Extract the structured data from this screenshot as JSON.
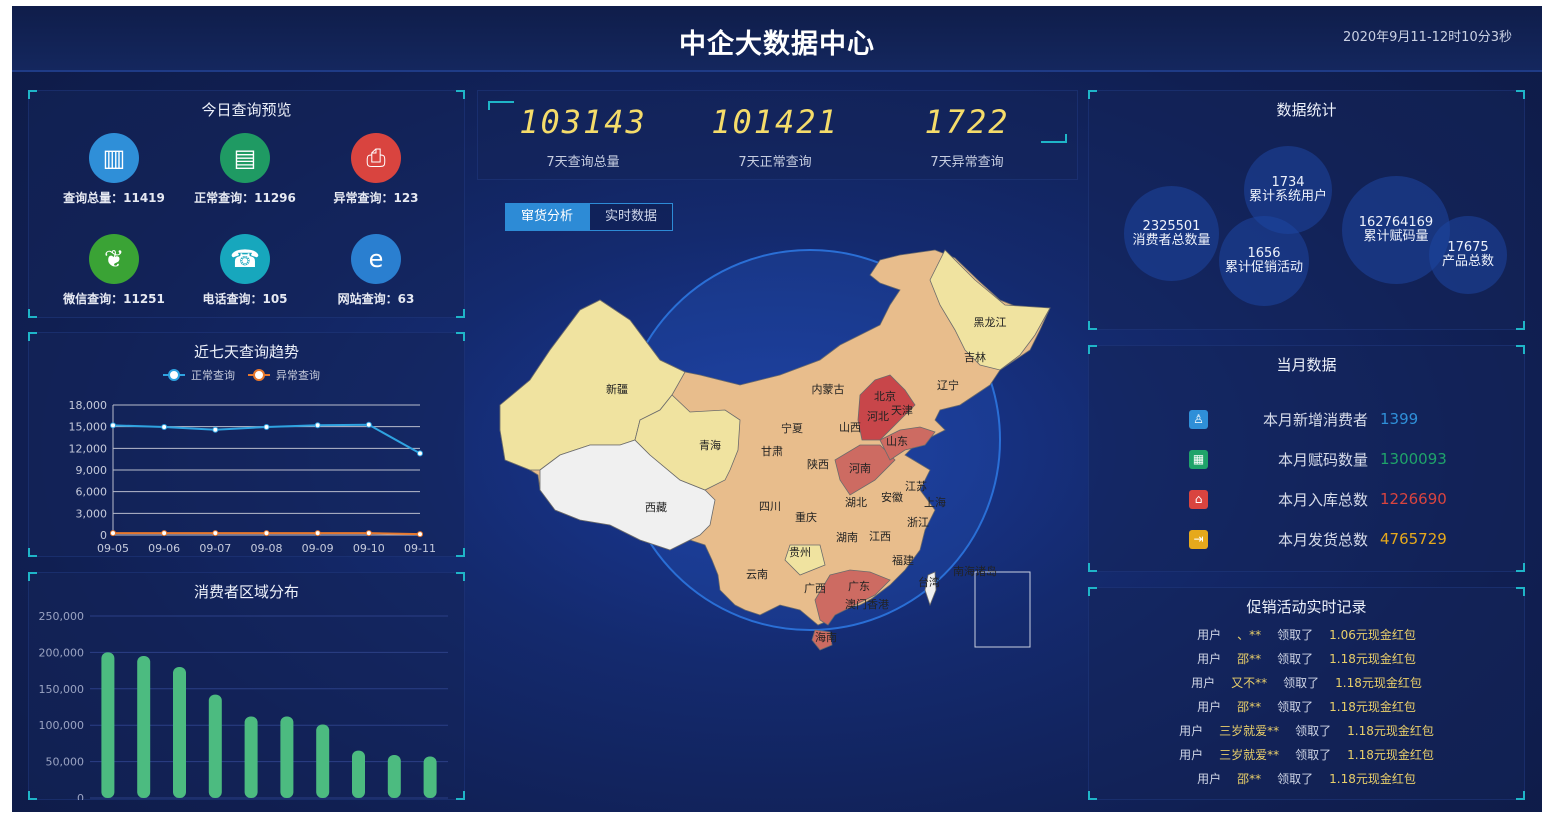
{
  "header": {
    "title": "中企大数据中心",
    "datetime": "2020年9月11-12时10分3秒"
  },
  "today": {
    "title": "今日查询预览",
    "items": [
      {
        "label": "查询总量：11419",
        "icon": "monitor-chart-icon",
        "color": "#2f8fd8"
      },
      {
        "label": "正常查询：11296",
        "icon": "cash-register-icon",
        "color": "#1f9a63"
      },
      {
        "label": "异常查询：123",
        "icon": "alert-document-icon",
        "color": "#d9443f"
      },
      {
        "label": "微信查询：11251",
        "icon": "wechat-icon",
        "color": "#3aa335"
      },
      {
        "label": "电话查询：105",
        "icon": "telephone-icon",
        "color": "#17a7bd"
      },
      {
        "label": "网站查询：63",
        "icon": "ie-browser-icon",
        "color": "#2a7fd0"
      }
    ]
  },
  "trend": {
    "title": "近七天查询趋势"
  },
  "region": {
    "title": "消费者区域分布"
  },
  "stats": [
    {
      "value": "103143",
      "label": "7天查询总量"
    },
    {
      "value": "101421",
      "label": "7天正常查询"
    },
    {
      "value": "1722",
      "label": "7天异常查询"
    }
  ],
  "tabs": [
    {
      "label": "窜货分析",
      "active": true
    },
    {
      "label": "实时数据",
      "active": false
    }
  ],
  "map": {
    "regions": [
      "新疆",
      "青海",
      "西藏",
      "四川",
      "甘肃",
      "宁夏",
      "内蒙古",
      "山西",
      "北京",
      "天津",
      "河北",
      "山东",
      "河南",
      "陕西",
      "湖北",
      "安徽",
      "江苏",
      "上海",
      "浙江",
      "重庆",
      "湖南",
      "江西",
      "贵州",
      "福建",
      "云南",
      "广西",
      "广东",
      "澳门香港",
      "海南",
      "台湾",
      "南海诸岛",
      "辽宁",
      "吉林",
      "黑龙江"
    ],
    "colors": {
      "high": "#c8464a",
      "mid": "#cd6b62",
      "base": "#e8bd8c",
      "low": "#f0e3a0",
      "none": "#f0f0f0"
    }
  },
  "datastats": {
    "title": "数据统计",
    "bubbles": [
      {
        "value": "2325501",
        "label": "消费者总数量"
      },
      {
        "value": "1734",
        "label": "累计系统用户"
      },
      {
        "value": "1656",
        "label": "累计促销活动"
      },
      {
        "value": "162764169",
        "label": "累计赋码量"
      },
      {
        "value": "17675",
        "label": "产品总数"
      }
    ]
  },
  "monthly": {
    "title": "当月数据",
    "items": [
      {
        "label": "本月新增消费者",
        "value": "1399",
        "icon": "user-icon",
        "color": "#2f8fd8"
      },
      {
        "label": "本月赋码数量",
        "value": "1300093",
        "icon": "qr-code-icon",
        "color": "#1fa36a"
      },
      {
        "label": "本月入库总数",
        "value": "1226690",
        "icon": "warehouse-in-icon",
        "color": "#d9443f"
      },
      {
        "label": "本月发货总数",
        "value": "4765729",
        "icon": "shipment-icon",
        "color": "#e6a91c"
      }
    ]
  },
  "promo": {
    "title": "促销活动实时记录",
    "rows": [
      {
        "u": "用户",
        "name": "、**",
        "act": "领取了",
        "amount": "1.06元现金红包"
      },
      {
        "u": "用户",
        "name": "邵**",
        "act": "领取了",
        "amount": "1.18元现金红包"
      },
      {
        "u": "用户",
        "name": "又不**",
        "act": "领取了",
        "amount": "1.18元现金红包"
      },
      {
        "u": "用户",
        "name": "邵**",
        "act": "领取了",
        "amount": "1.18元现金红包"
      },
      {
        "u": "用户",
        "name": "三岁就爱**",
        "act": "领取了",
        "amount": "1.18元现金红包"
      },
      {
        "u": "用户",
        "name": "三岁就爱**",
        "act": "领取了",
        "amount": "1.18元现金红包"
      },
      {
        "u": "用户",
        "name": "邵**",
        "act": "领取了",
        "amount": "1.18元现金红包"
      }
    ]
  },
  "chart_data": [
    {
      "type": "line",
      "x": [
        "09-05",
        "09-06",
        "09-07",
        "09-08",
        "09-09",
        "09-10",
        "09-11"
      ],
      "series": [
        {
          "name": "正常查询",
          "color": "#2fa3e0",
          "values": [
            15180,
            14960,
            14570,
            14960,
            15190,
            15265,
            11296
          ]
        },
        {
          "name": "异常查询",
          "color": "#e8782d",
          "values": [
            266,
            267,
            266,
            267,
            266,
            267,
            123
          ]
        }
      ],
      "ylim": [
        0,
        18000
      ],
      "yticks": [
        "0",
        "3,000",
        "6,000",
        "9,000",
        "12,000",
        "15,000",
        "18,000"
      ],
      "grid": true,
      "legend": "top"
    },
    {
      "type": "bar",
      "values": [
        200000,
        195000,
        180000,
        142000,
        112000,
        112000,
        101000,
        65000,
        59000,
        57000
      ],
      "ylim": [
        0,
        250000
      ],
      "yticks": [
        "0",
        "50,000",
        "100,000",
        "150,000",
        "200,000",
        "250,000"
      ],
      "color": "#4cbb80",
      "grid": true
    }
  ]
}
